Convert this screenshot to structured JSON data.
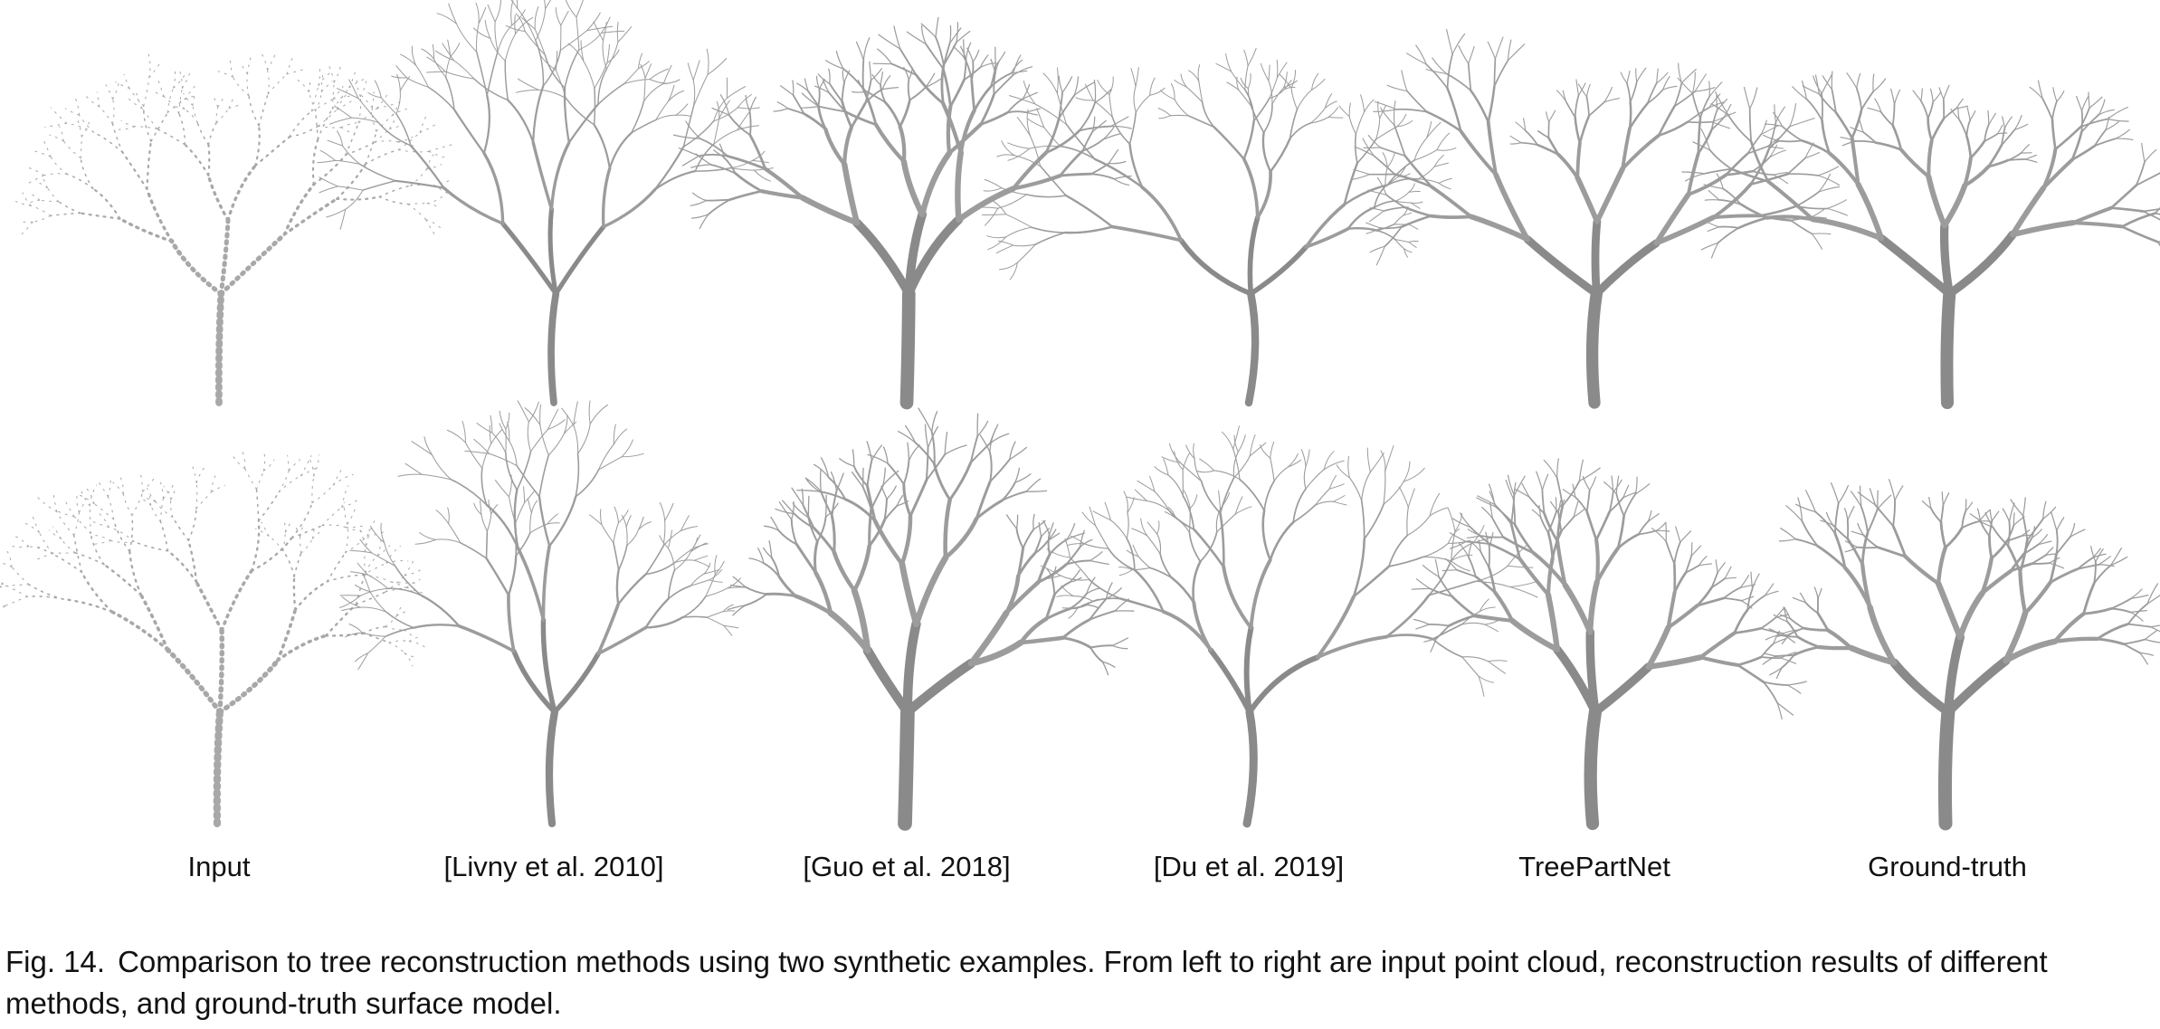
{
  "figure": {
    "column_labels": [
      "Input",
      "[Livny et al. 2010]",
      "[Guo et al. 2018]",
      "[Du et al. 2019]",
      "TreePartNet",
      "Ground-truth"
    ],
    "caption_number": "Fig. 14.",
    "caption_text": "Comparison to tree reconstruction methods using two synthetic examples. From left to right are input point cloud, reconstruction results of different methods, and ground-truth surface model.",
    "colors": {
      "tree": "#9c9c9c",
      "background": "#ffffff",
      "text": "#111111"
    }
  }
}
